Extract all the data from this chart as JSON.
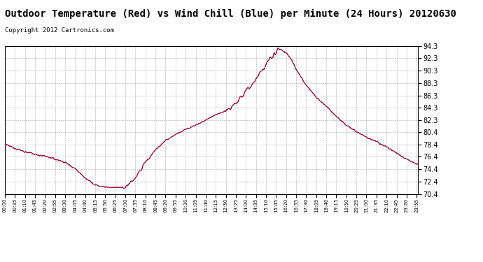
{
  "title": "Outdoor Temperature (Red) vs Wind Chill (Blue) per Minute (24 Hours) 20120630",
  "copyright": "Copyright 2012 Cartronics.com",
  "ylim": [
    70.4,
    94.3
  ],
  "yticks": [
    70.4,
    72.4,
    74.4,
    76.4,
    78.4,
    80.4,
    82.3,
    84.3,
    86.3,
    88.3,
    90.3,
    92.3,
    94.3
  ],
  "line_color_temp": "#cc0000",
  "line_color_chill": "#0000cc",
  "background_color": "#ffffff",
  "grid_color": "#aaaaaa",
  "title_fontsize": 10,
  "copyright_fontsize": 6.5,
  "ctrl_minutes": [
    0,
    35,
    70,
    105,
    140,
    175,
    210,
    245,
    280,
    315,
    350,
    385,
    390,
    420,
    455,
    490,
    525,
    560,
    595,
    630,
    665,
    700,
    735,
    770,
    805,
    840,
    870,
    885,
    900,
    915,
    930,
    945,
    960,
    980,
    1000,
    1015,
    1050,
    1085,
    1120,
    1155,
    1190,
    1225,
    1260,
    1295,
    1330,
    1365,
    1400,
    1435
  ],
  "ctrl_temps": [
    78.4,
    77.8,
    77.2,
    76.8,
    76.5,
    76.0,
    75.5,
    74.5,
    73.0,
    71.8,
    71.5,
    71.4,
    71.4,
    71.4,
    73.0,
    75.5,
    77.5,
    79.0,
    80.0,
    80.8,
    81.5,
    82.3,
    83.2,
    83.8,
    85.0,
    87.0,
    88.5,
    89.5,
    90.5,
    91.5,
    92.5,
    93.3,
    93.8,
    93.2,
    92.0,
    90.5,
    88.0,
    86.0,
    84.5,
    83.0,
    81.5,
    80.5,
    79.5,
    78.8,
    78.0,
    77.0,
    76.0,
    75.2
  ]
}
